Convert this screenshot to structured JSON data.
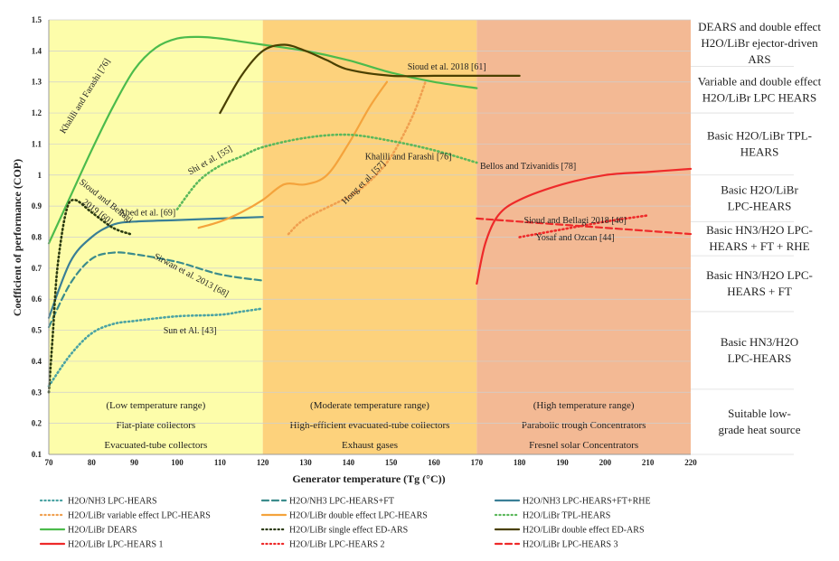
{
  "chart_data": {
    "type": "line",
    "xlabel": "Generator temperature (Tg (°C))",
    "ylabel": "Coefficient of performance (COP)",
    "xlim": [
      70,
      220
    ],
    "ylim": [
      0.1,
      1.5
    ],
    "x_ticks": [
      70,
      80,
      90,
      100,
      110,
      120,
      130,
      140,
      150,
      160,
      170,
      180,
      190,
      200,
      210,
      220
    ],
    "y_ticks": [
      "0.1",
      "0.2",
      "0.3",
      "0.4",
      "0.5",
      "0.6",
      "0.7",
      "0.8",
      "0.9",
      "1",
      "1.1",
      "1.2",
      "1.3",
      "1.4",
      "1.5"
    ],
    "grid": "horizontal",
    "bands": [
      {
        "from": 70,
        "to": 120,
        "color": "#fdfdaa",
        "lines": [
          "(Low temperature range)",
          "Flat-plate collectors",
          "Evacuated-tube collectors"
        ]
      },
      {
        "from": 120,
        "to": 170,
        "color": "#fdd27c",
        "lines": [
          "(Moderate temperature range)",
          "High-efficient evacuated-tube collectors",
          "Exhaust gases"
        ]
      },
      {
        "from": 170,
        "to": 220,
        "color": "#f3b994",
        "lines": [
          "(High temperature range)",
          "Parabolic trough Concentrators",
          "Fresnel solar Concentrators"
        ]
      }
    ],
    "categories_right": [
      {
        "y_from": 1.35,
        "y_to": 1.5,
        "lines": [
          "DEARS and double effect",
          "H2O/LiBr ejector-driven",
          "ARS"
        ]
      },
      {
        "y_from": 1.2,
        "y_to": 1.35,
        "lines": [
          "Variable and double effect",
          "H2O/LiBr LPC HEARS"
        ]
      },
      {
        "y_from": 1.0,
        "y_to": 1.2,
        "lines": [
          "Basic H2O/LiBr TPL-",
          "HEARS"
        ]
      },
      {
        "y_from": 0.85,
        "y_to": 1.0,
        "lines": [
          "Basic H2O/LiBr",
          "LPC-HEARS"
        ]
      },
      {
        "y_from": 0.74,
        "y_to": 0.85,
        "lines": [
          "Basic HN3/H2O LPC-",
          "HEARS + FT + RHE"
        ]
      },
      {
        "y_from": 0.56,
        "y_to": 0.74,
        "lines": [
          "Basic HN3/H2O LPC-",
          "HEARS + FT"
        ]
      },
      {
        "y_from": 0.31,
        "y_to": 0.56,
        "lines": [
          "Basic HN3/H2O",
          "LPC-HEARS"
        ]
      },
      {
        "y_from": 0.1,
        "y_to": 0.31,
        "lines": [
          "Suitable low-",
          "grade heat source"
        ]
      }
    ],
    "series": [
      {
        "name": "H2O/NH3 LPC-HEARS",
        "color": "#4ba3a3",
        "dash": "dot",
        "x": [
          70,
          75,
          80,
          85,
          90,
          100,
          110,
          115,
          120
        ],
        "y": [
          0.32,
          0.42,
          0.49,
          0.52,
          0.53,
          0.545,
          0.55,
          0.56,
          0.57
        ]
      },
      {
        "name": "H2O/NH3 LPC-HEARS+FT",
        "color": "#3c8c8c",
        "dash": "dash",
        "x": [
          70,
          75,
          80,
          85,
          90,
          100,
          110,
          120
        ],
        "y": [
          0.51,
          0.65,
          0.73,
          0.75,
          0.745,
          0.72,
          0.68,
          0.66
        ]
      },
      {
        "name": "H2O/NH3 LPC-HEARS+FT+RHE",
        "color": "#3a7f96",
        "dash": "solid",
        "x": [
          70,
          75,
          80,
          85,
          90,
          100,
          110,
          120
        ],
        "y": [
          0.54,
          0.72,
          0.8,
          0.84,
          0.85,
          0.855,
          0.86,
          0.865
        ]
      },
      {
        "name": "H2O/LiBr variable effect LPC-HEARS",
        "color": "#f0a050",
        "dash": "dot",
        "x": [
          126,
          130,
          140,
          145,
          150,
          155,
          158
        ],
        "y": [
          0.81,
          0.86,
          0.93,
          0.98,
          1.06,
          1.19,
          1.3
        ]
      },
      {
        "name": "H2O/LiBr double effect LPC-HEARS",
        "color": "#f4a33c",
        "dash": "solid",
        "x": [
          105,
          110,
          115,
          120,
          125,
          130,
          135,
          140,
          145,
          149
        ],
        "y": [
          0.83,
          0.85,
          0.88,
          0.92,
          0.97,
          0.97,
          1.0,
          1.1,
          1.22,
          1.3
        ]
      },
      {
        "name": "H2O/LiBr TPL-HEARS",
        "color": "#5bb85b",
        "dash": "dot",
        "x": [
          100,
          105,
          110,
          115,
          120,
          130,
          140,
          150,
          160,
          170
        ],
        "y": [
          0.89,
          0.98,
          1.03,
          1.06,
          1.09,
          1.12,
          1.13,
          1.11,
          1.08,
          1.04
        ]
      },
      {
        "name": "H2O/LiBr DEARS",
        "color": "#4cbb4c",
        "dash": "solid",
        "x": [
          70,
          75,
          80,
          85,
          90,
          95,
          100,
          105,
          110,
          115,
          120,
          130,
          140,
          150,
          160,
          170
        ],
        "y": [
          0.78,
          0.93,
          1.08,
          1.22,
          1.34,
          1.41,
          1.44,
          1.445,
          1.44,
          1.43,
          1.42,
          1.4,
          1.37,
          1.33,
          1.3,
          1.28
        ]
      },
      {
        "name": "H2O/LiBr single effect ED-ARS",
        "color": "#2a3a10",
        "dash": "dot",
        "x": [
          70,
          71,
          72,
          74,
          76,
          80,
          85,
          89
        ],
        "y": [
          0.3,
          0.5,
          0.7,
          0.88,
          0.92,
          0.88,
          0.83,
          0.81
        ]
      },
      {
        "name": "H2O/LiBr double effect ED-ARS",
        "color": "#4a4000",
        "dash": "solid",
        "x": [
          110,
          115,
          120,
          125,
          130,
          135,
          140,
          150,
          160,
          170,
          180
        ],
        "y": [
          1.2,
          1.32,
          1.4,
          1.42,
          1.4,
          1.37,
          1.34,
          1.32,
          1.32,
          1.32,
          1.32
        ]
      },
      {
        "name": "H2O/LiBr LPC-HEARS 1",
        "color": "#ee2a2a",
        "dash": "solid",
        "x": [
          170,
          172,
          175,
          180,
          190,
          200,
          210,
          220
        ],
        "y": [
          0.65,
          0.78,
          0.87,
          0.92,
          0.97,
          1.0,
          1.01,
          1.02
        ]
      },
      {
        "name": "H2O/LiBr LPC-HEARS 2",
        "color": "#ee2a2a",
        "dash": "dot",
        "x": [
          180,
          190,
          200,
          210
        ],
        "y": [
          0.8,
          0.825,
          0.85,
          0.87
        ]
      },
      {
        "name": "H2O/LiBr LPC-HEARS 3",
        "color": "#ee2a2a",
        "dash": "dash",
        "x": [
          170,
          180,
          190,
          200,
          210,
          220
        ],
        "y": [
          0.86,
          0.85,
          0.84,
          0.83,
          0.82,
          0.81
        ]
      }
    ],
    "annotations": [
      {
        "text": "Khalili and Farashi [76]",
        "x": 79,
        "y": 1.25,
        "rotate": -58
      },
      {
        "text": "Sioud and Bellagi",
        "x": 83,
        "y": 0.91,
        "rotate": 38
      },
      {
        "text": "2019 [60]",
        "x": 81,
        "y": 0.875,
        "rotate": 38
      },
      {
        "text": "Shi et al. [55]",
        "x": 108,
        "y": 1.04,
        "rotate": -30
      },
      {
        "text": "Abed et al. [69]",
        "x": 93,
        "y": 0.87,
        "rotate": 0
      },
      {
        "text": "Sirwan et al. 2013 [68]",
        "x": 103,
        "y": 0.67,
        "rotate": 28
      },
      {
        "text": "Sun et Al. [43]",
        "x": 103,
        "y": 0.49,
        "rotate": 0
      },
      {
        "text": "Hong et al. [57]",
        "x": 144,
        "y": 0.97,
        "rotate": -45
      },
      {
        "text": "Khalili and Farashi [76]",
        "x": 154,
        "y": 1.05,
        "rotate": 0
      },
      {
        "text": "Sioud et al. 2018 [61]",
        "x": 163,
        "y": 1.34,
        "rotate": 0
      },
      {
        "text": "Bellos and Tzivanidis [78]",
        "x": 182,
        "y": 1.02,
        "rotate": 0
      },
      {
        "text": "Sioud and Bellagi 2018 [46]",
        "x": 193,
        "y": 0.845,
        "rotate": 0
      },
      {
        "text": "Yosaf and Ozcan [44]",
        "x": 193,
        "y": 0.79,
        "rotate": 0
      }
    ],
    "legend": {
      "placement": "bottom",
      "columns": 3
    }
  }
}
